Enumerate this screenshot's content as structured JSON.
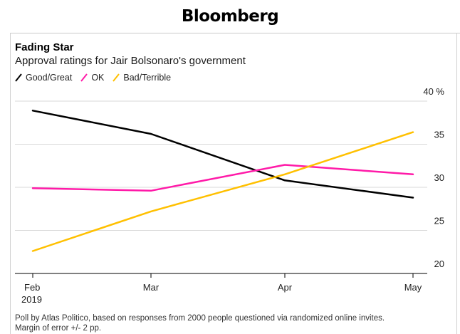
{
  "header": {
    "brand": "Bloomberg"
  },
  "chart_data": {
    "type": "line",
    "title": "Fading Star",
    "subtitle": "Approval ratings for Jair Bolsonaro's government",
    "x": [
      "Feb",
      "Mar",
      "Apr",
      "May"
    ],
    "x_sublabels": [
      "2019",
      "",
      "",
      ""
    ],
    "y_ticks": [
      {
        "value": 40,
        "label": "40 %"
      },
      {
        "value": 35,
        "label": "35"
      },
      {
        "value": 30,
        "label": "30"
      },
      {
        "value": 25,
        "label": "25"
      },
      {
        "value": 20,
        "label": "20"
      }
    ],
    "ylim": [
      18.5,
      40
    ],
    "grid": true,
    "legend_position": "top-left",
    "series": [
      {
        "name": "Good/Great",
        "color": "#000000",
        "values": [
          38.9,
          36.2,
          30.8,
          28.8
        ]
      },
      {
        "name": "OK",
        "color": "#ff1aa8",
        "values": [
          29.9,
          29.6,
          32.6,
          31.5
        ]
      },
      {
        "name": "Bad/Terrible",
        "color": "#ffc000",
        "values": [
          22.6,
          27.2,
          31.5,
          36.4
        ]
      }
    ]
  },
  "footnote": {
    "line1": "Poll by Atlas Politico, based on responses from 2000 people questioned via randomized online invites.",
    "line2": "Margin of error +/- 2 pp."
  }
}
